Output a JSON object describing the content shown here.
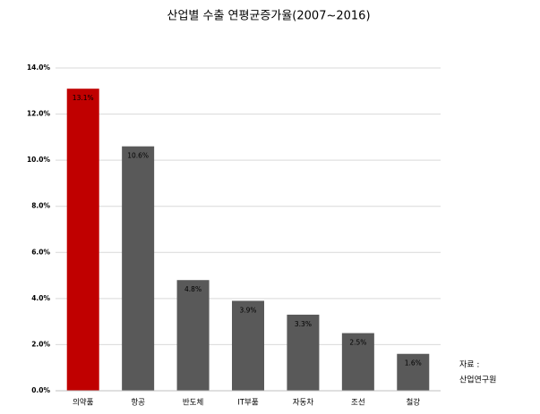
{
  "chart_data": {
    "type": "bar",
    "title": "산업별 수출 연평균증가율(2007~2016)",
    "categories": [
      "의약품",
      "항공",
      "반도체",
      "IT부품",
      "자동차",
      "조선",
      "철강"
    ],
    "values": [
      13.1,
      10.6,
      4.8,
      3.9,
      3.3,
      2.5,
      1.6
    ],
    "value_labels": [
      "13.1%",
      "10.6%",
      "4.8%",
      "3.9%",
      "3.3%",
      "2.5%",
      "1.6%"
    ],
    "colors": [
      "#c00000",
      "#595959",
      "#595959",
      "#595959",
      "#595959",
      "#595959",
      "#595959"
    ],
    "ylim": [
      0,
      14
    ],
    "yticks": [
      {
        "value": 0,
        "label": "0.0%"
      },
      {
        "value": 2,
        "label": "2.0%"
      },
      {
        "value": 4,
        "label": "4.0%"
      },
      {
        "value": 6,
        "label": "6.0%"
      },
      {
        "value": 8,
        "label": "8.0%"
      },
      {
        "value": 10,
        "label": "10.0%"
      },
      {
        "value": 12,
        "label": "12.0%"
      },
      {
        "value": 14,
        "label": "14.0%"
      }
    ],
    "grid": true,
    "annotations": [
      "자료 :",
      "산업연구원"
    ]
  }
}
